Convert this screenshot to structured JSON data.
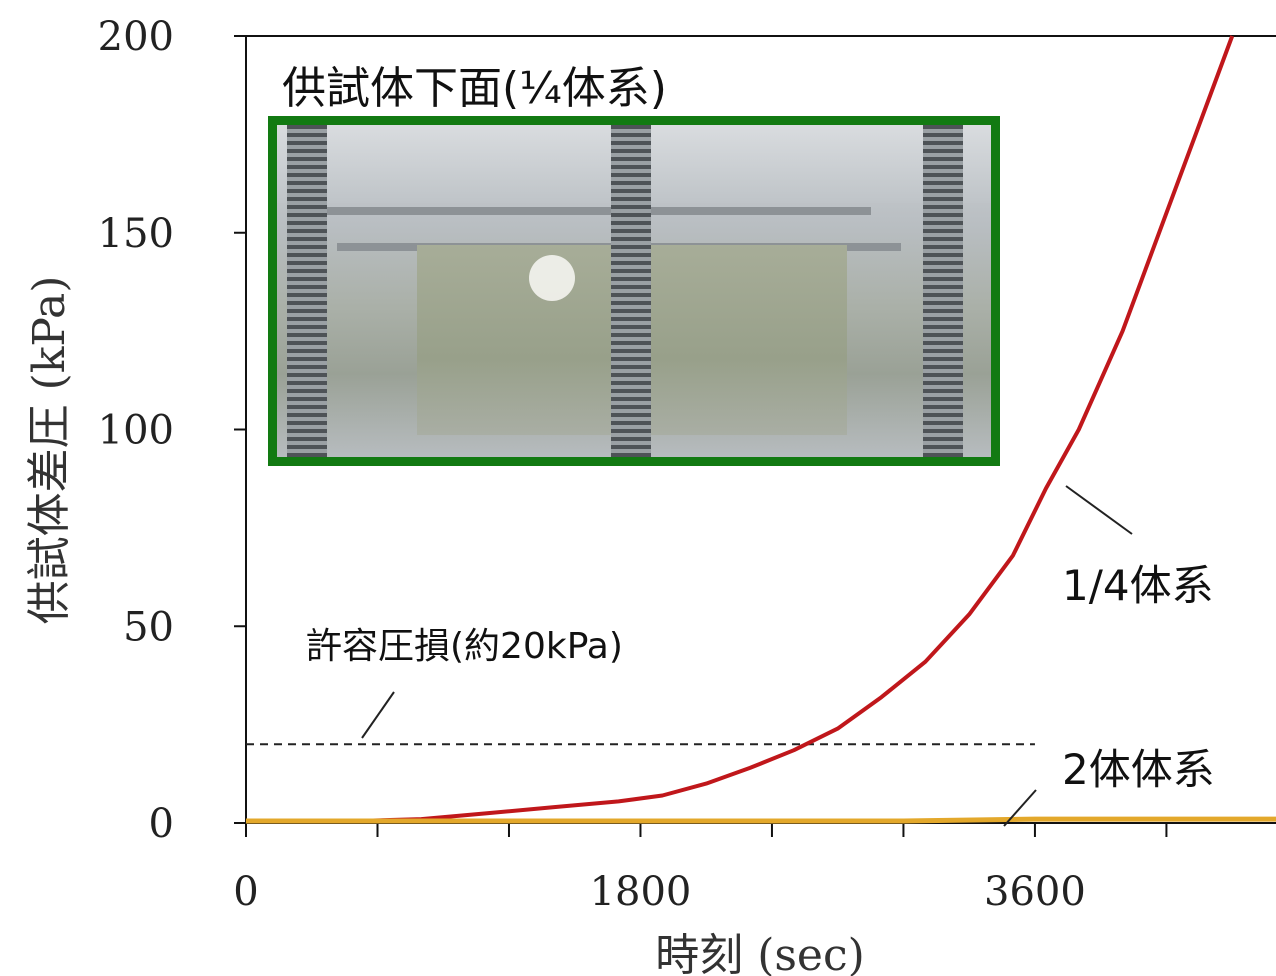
{
  "chart_data": {
    "type": "line",
    "xlabel": "時刻 (sec)",
    "ylabel": "供試体差圧 (kPa)",
    "xlim": [
      0,
      4700
    ],
    "ylim": [
      0,
      200
    ],
    "x_ticks": [
      0,
      1800,
      3600
    ],
    "y_ticks": [
      0,
      50,
      100,
      150,
      200
    ],
    "grid": false,
    "series": [
      {
        "name": "1/4体系",
        "color": "#c0171b",
        "x": [
          500,
          800,
          1100,
          1400,
          1700,
          1900,
          2100,
          2300,
          2500,
          2700,
          2900,
          3100,
          3300,
          3500,
          3650,
          3800,
          4000,
          4200,
          4400,
          4500
        ],
        "y": [
          0.5,
          1,
          2.5,
          4,
          5.5,
          7,
          10,
          14,
          18.5,
          24,
          32,
          41,
          53,
          68,
          85,
          100,
          125,
          155,
          185,
          200
        ]
      },
      {
        "name": "2体体系",
        "color": "#e3a82b",
        "x": [
          0,
          1000,
          2000,
          3000,
          3600,
          4000,
          4700
        ],
        "y": [
          0.5,
          0.5,
          0.5,
          0.5,
          1,
          1,
          1
        ]
      }
    ],
    "reference_line": {
      "label": "許容圧損(約20kPa)",
      "y": 20,
      "style": "dashed",
      "color": "#222222"
    },
    "annotations": [
      "1/4体系",
      "2体体系",
      "許容圧損(約20kPa)"
    ]
  },
  "photo": {
    "title": "供試体下面(¼体系)",
    "border_color": "#127a12"
  }
}
